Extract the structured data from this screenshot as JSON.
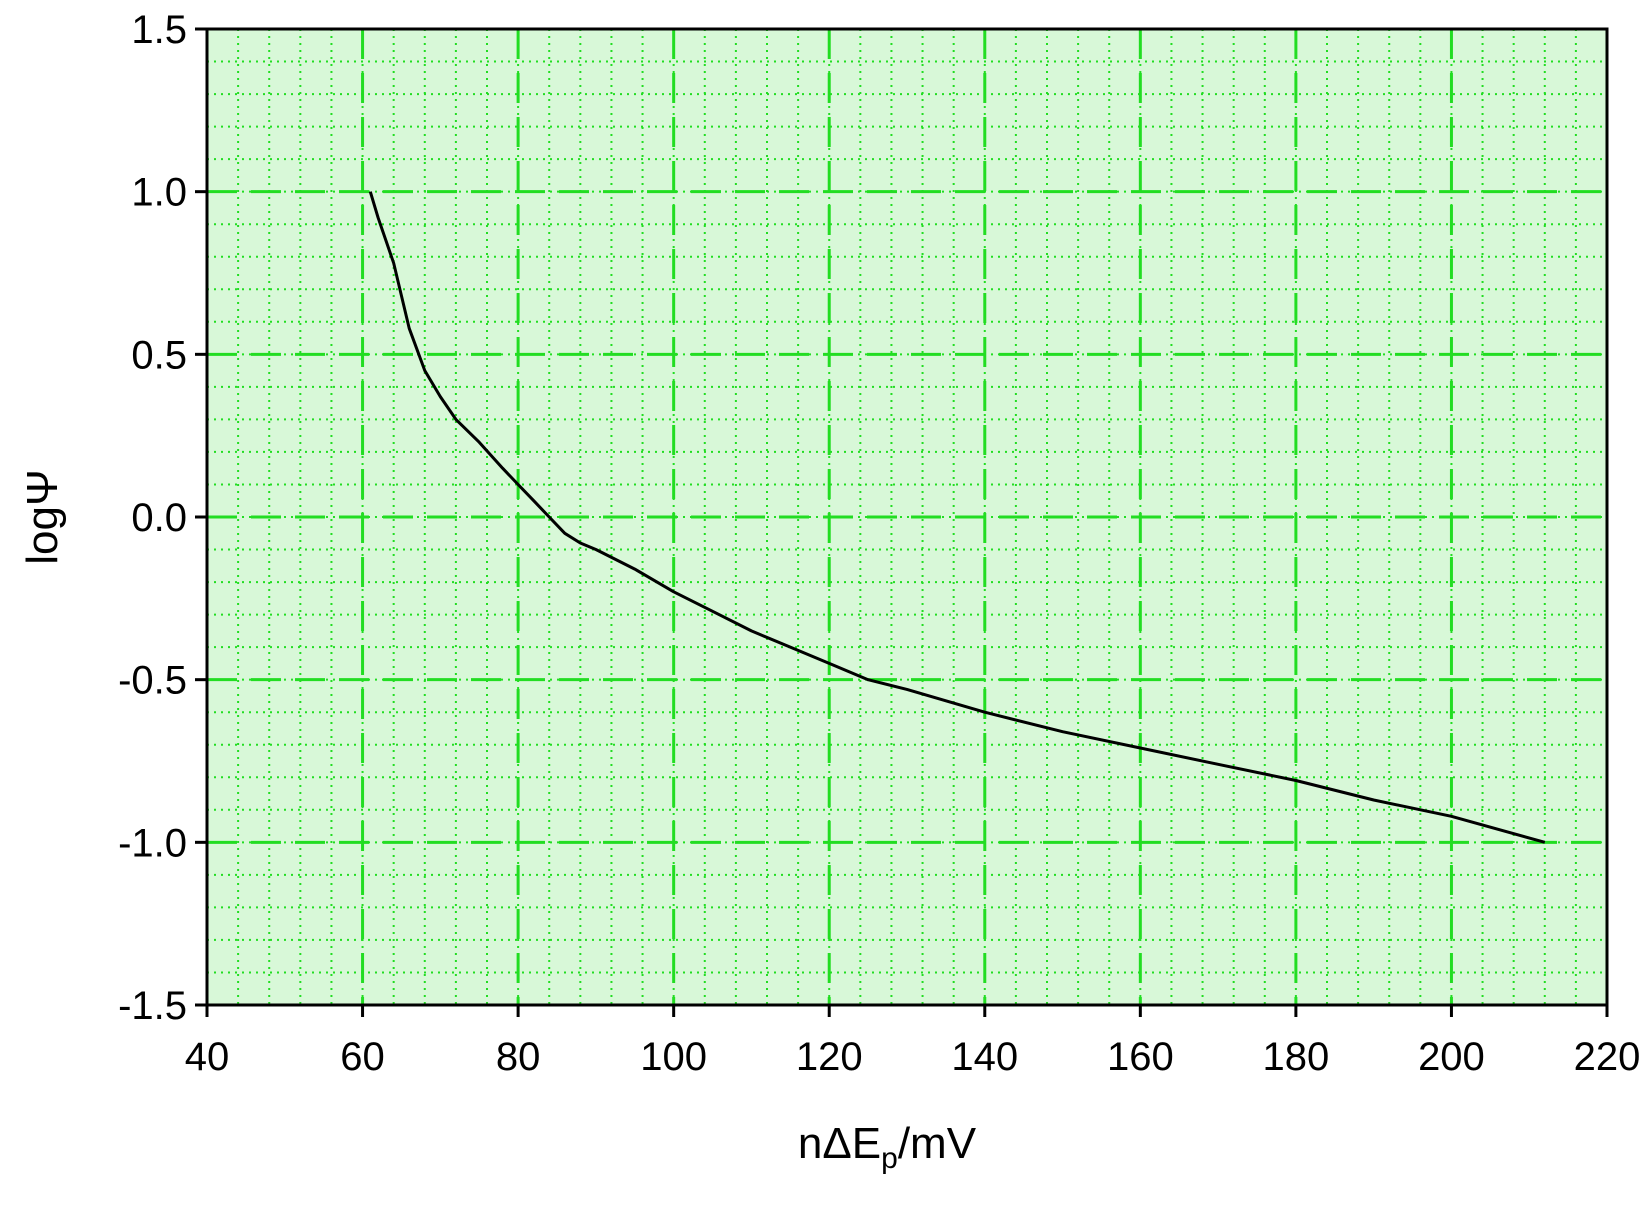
{
  "chart_data": {
    "type": "line",
    "title": "",
    "xlabel": {
      "base": "nΔE",
      "sub": "p",
      "tail": "/mV"
    },
    "ylabel": "logΨ",
    "xlim": [
      40,
      220
    ],
    "ylim": [
      -1.5,
      1.5
    ],
    "x_ticks": [
      40,
      60,
      80,
      100,
      120,
      140,
      160,
      180,
      200,
      220
    ],
    "x_tick_labels": [
      "40",
      "60",
      "80",
      "100",
      "120",
      "140",
      "160",
      "180",
      "200",
      "220"
    ],
    "y_ticks": [
      1.5,
      1.0,
      0.5,
      0.0,
      -0.5,
      -1.0,
      -1.5
    ],
    "y_tick_labels": [
      "1.5",
      "1.0",
      "0.5",
      "0.0",
      "-0.5",
      "-1.0",
      "-1.5"
    ],
    "grid": true,
    "grid_major": "dashed",
    "grid_minor": "dotted",
    "x_minor_step": 4,
    "y_minor_step": 0.1,
    "colors": {
      "plot_background": "#d8f8d8",
      "grid": "#22dd22",
      "line": "#000000",
      "axes": "#000000"
    },
    "series": [
      {
        "x": [
          61,
          62,
          64,
          66,
          68,
          70,
          72,
          75,
          78,
          80,
          82,
          84,
          86,
          88,
          90,
          95,
          100,
          105,
          110,
          115,
          120,
          125,
          130,
          140,
          150,
          160,
          170,
          180,
          190,
          200,
          212
        ],
        "values": [
          1.0,
          0.92,
          0.78,
          0.58,
          0.45,
          0.37,
          0.3,
          0.23,
          0.15,
          0.1,
          0.05,
          0.0,
          -0.05,
          -0.08,
          -0.1,
          -0.16,
          -0.23,
          -0.29,
          -0.35,
          -0.4,
          -0.45,
          -0.5,
          -0.53,
          -0.6,
          -0.66,
          -0.71,
          -0.76,
          -0.81,
          -0.87,
          -0.92,
          -1.0
        ]
      }
    ]
  }
}
